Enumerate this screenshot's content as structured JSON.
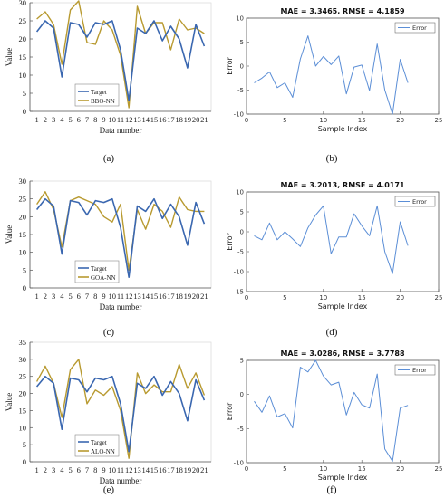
{
  "colors": {
    "target": "#3a67b0",
    "model": "#b89a30",
    "error": "#5b8ed6",
    "axis": "#555555",
    "grid_dot": "#bbbbbb"
  },
  "panel_labels": [
    "(a)",
    "(b)",
    "(c)",
    "(d)",
    "(e)",
    "(f)"
  ],
  "chart_data": [
    {
      "id": "a",
      "type": "line",
      "ylabel": "Value",
      "xlabel": "Data number",
      "ylim": [
        0,
        30
      ],
      "yticks": [
        0,
        5,
        10,
        15,
        20,
        25,
        30
      ],
      "categories": [
        "1",
        "2",
        "3",
        "4",
        "5",
        "6",
        "7",
        "8",
        "9",
        "10",
        "11",
        "12",
        "13",
        "14",
        "15",
        "16",
        "17",
        "18",
        "19",
        "20",
        "21"
      ],
      "legend_position": "bottom-left",
      "series": [
        {
          "name": "Target",
          "values": [
            22,
            25,
            23,
            9.5,
            24.5,
            24,
            20.5,
            24.5,
            24,
            25,
            17,
            3,
            23,
            21.5,
            25,
            19.5,
            23.5,
            20,
            12,
            24,
            18
          ]
        },
        {
          "name": "BBO-NN",
          "values": [
            25.5,
            27.5,
            24,
            13,
            28,
            30.5,
            19,
            18.5,
            25,
            22.5,
            15.5,
            1,
            29,
            21.5,
            24.5,
            24.5,
            17,
            25.5,
            22.5,
            23,
            21.5
          ]
        }
      ]
    },
    {
      "id": "b",
      "type": "line",
      "title": "MAE = 3.3465, RMSE = 4.1859",
      "ylabel": "Error",
      "xlabel": "Sample Index",
      "xlim": [
        0,
        25
      ],
      "ylim": [
        -10,
        10
      ],
      "xticks": [
        0,
        5,
        10,
        15,
        20,
        25
      ],
      "yticks": [
        -10,
        -5,
        0,
        5,
        10
      ],
      "legend_position": "top-right",
      "series": [
        {
          "name": "Error",
          "x": [
            1,
            2,
            3,
            4,
            5,
            6,
            7,
            8,
            9,
            10,
            11,
            12,
            13,
            14,
            15,
            16,
            17,
            18,
            19,
            20,
            21
          ],
          "y": [
            -3.5,
            -2.5,
            -1.2,
            -4.5,
            -3.5,
            -6.5,
            1.5,
            6.3,
            0,
            2,
            0.3,
            2.1,
            -5.8,
            -0.2,
            0.2,
            -5.1,
            4.6,
            -5,
            -10,
            1.4,
            -3.5
          ]
        }
      ]
    },
    {
      "id": "c",
      "type": "line",
      "ylabel": "Value",
      "xlabel": "Data number",
      "ylim": [
        0,
        30
      ],
      "yticks": [
        0,
        5,
        10,
        15,
        20,
        25,
        30
      ],
      "categories": [
        "1",
        "2",
        "3",
        "4",
        "5",
        "6",
        "7",
        "8",
        "9",
        "10",
        "11",
        "12",
        "13",
        "14",
        "15",
        "16",
        "17",
        "18",
        "19",
        "20",
        "21"
      ],
      "legend_position": "bottom-left",
      "series": [
        {
          "name": "Target",
          "values": [
            22,
            25,
            23,
            9.5,
            24.5,
            24,
            20.5,
            24.5,
            24,
            25,
            17,
            3,
            23,
            21.5,
            25,
            19.5,
            23.5,
            20,
            12,
            24,
            18
          ]
        },
        {
          "name": "GOA-NN",
          "values": [
            23.5,
            27,
            22,
            11.5,
            24.5,
            25.5,
            24.5,
            23.5,
            20,
            18.5,
            23.5,
            5,
            22,
            16.5,
            23.5,
            21.5,
            17,
            25.5,
            22,
            21.5,
            21.5
          ]
        }
      ]
    },
    {
      "id": "d",
      "type": "line",
      "title": "MAE = 3.2013, RMSE = 4.0171",
      "ylabel": "Error",
      "xlabel": "Sample Index",
      "xlim": [
        0,
        25
      ],
      "ylim": [
        -15,
        10
      ],
      "xticks": [
        0,
        5,
        10,
        15,
        20,
        25
      ],
      "yticks": [
        -15,
        -10,
        -5,
        0,
        5,
        10
      ],
      "legend_position": "top-right",
      "series": [
        {
          "name": "Error",
          "x": [
            1,
            2,
            3,
            4,
            5,
            6,
            7,
            8,
            9,
            10,
            11,
            12,
            13,
            14,
            15,
            16,
            17,
            18,
            19,
            20,
            21
          ],
          "y": [
            -1,
            -2,
            2.2,
            -2,
            0,
            -1.8,
            -3.7,
            1,
            4.2,
            6.5,
            -5.5,
            -1.3,
            -1.3,
            4.5,
            1.5,
            -1,
            6.5,
            -5,
            -10.5,
            2.5,
            -3.5
          ]
        }
      ]
    },
    {
      "id": "e",
      "type": "line",
      "ylabel": "Value",
      "xlabel": "Data number",
      "ylim": [
        0,
        35
      ],
      "yticks": [
        0,
        5,
        10,
        15,
        20,
        25,
        30,
        35
      ],
      "categories": [
        "1",
        "2",
        "3",
        "4",
        "5",
        "6",
        "7",
        "8",
        "9",
        "10",
        "11",
        "12",
        "13",
        "14",
        "15",
        "16",
        "17",
        "18",
        "19",
        "20",
        "21"
      ],
      "legend_position": "bottom-left",
      "series": [
        {
          "name": "Target",
          "values": [
            22,
            25,
            23,
            9.5,
            24.5,
            24,
            20.5,
            24.5,
            24,
            25,
            17,
            3,
            23,
            21.5,
            25,
            19.5,
            23.5,
            20,
            12,
            24,
            18
          ]
        },
        {
          "name": "ALO-NN",
          "values": [
            23.5,
            28,
            23,
            13,
            27,
            30,
            17,
            21,
            19.5,
            22,
            15,
            1,
            26,
            20,
            22.5,
            20.5,
            20.5,
            28.5,
            21.5,
            26,
            19.5
          ]
        }
      ]
    },
    {
      "id": "f",
      "type": "line",
      "title": "MAE = 3.0286, RMSE = 3.7788",
      "ylabel": "Error",
      "xlabel": "Sample Index",
      "xlim": [
        0,
        25
      ],
      "ylim": [
        -10,
        5
      ],
      "xticks": [
        0,
        5,
        10,
        15,
        20,
        25
      ],
      "yticks": [
        -10,
        -5,
        0,
        5
      ],
      "legend_position": "top-right",
      "series": [
        {
          "name": "Error",
          "x": [
            1,
            2,
            3,
            4,
            5,
            6,
            7,
            8,
            9,
            10,
            11,
            12,
            13,
            14,
            15,
            16,
            17,
            18,
            19,
            20,
            21
          ],
          "y": [
            -1,
            -2.6,
            -0.2,
            -3.3,
            -2.8,
            -4.9,
            4,
            3.3,
            5,
            2.7,
            1.4,
            1.8,
            -3,
            0.3,
            -1.5,
            -2,
            3,
            -8,
            -9.8,
            -2,
            -1.6
          ]
        }
      ]
    }
  ]
}
